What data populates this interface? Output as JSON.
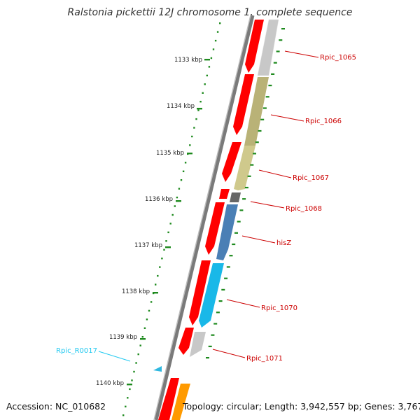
{
  "title": "Ralstonia pickettii 12J chromosome 1, complete sequence",
  "footer": {
    "accession": "Accession: NC_010682",
    "summary": "Topology: circular; Length: 3,942,557 bp; Genes: 3,767"
  },
  "colors": {
    "backbone": "#8c8c8c",
    "forward_gene": "#ff0000",
    "tick": "#1e8a1e",
    "gene_label": "#cc0000",
    "rna_label": "#1ec8f0",
    "tick_label": "#222222"
  },
  "ruler": {
    "unit": "kbp",
    "labels": [
      "1133 kbp",
      "1134 kbp",
      "1135 kbp",
      "1136 kbp",
      "1137 kbp",
      "1138 kbp",
      "1139 kbp",
      "1140 kbp"
    ]
  },
  "gene_labels": [
    {
      "text": "Rpic_1065",
      "strand": "reverse",
      "color": "#c8c8c8"
    },
    {
      "text": "Rpic_1066",
      "strand": "reverse",
      "color": "#b9b277"
    },
    {
      "text": "Rpic_1067",
      "strand": "reverse",
      "color": "#cfc98c"
    },
    {
      "text": "Rpic_1068",
      "strand": "reverse",
      "color": "#666666"
    },
    {
      "text": "hisZ",
      "strand": "reverse",
      "color": "#4a7fb5"
    },
    {
      "text": "Rpic_1070",
      "strand": "reverse",
      "color": "#19b8e8"
    },
    {
      "text": "Rpic_1071",
      "strand": "reverse",
      "color": "#c8c8c8"
    },
    {
      "text": "Rpic_R0017",
      "strand": "reverse",
      "color": "#2fb8e0",
      "type": "rna"
    }
  ]
}
